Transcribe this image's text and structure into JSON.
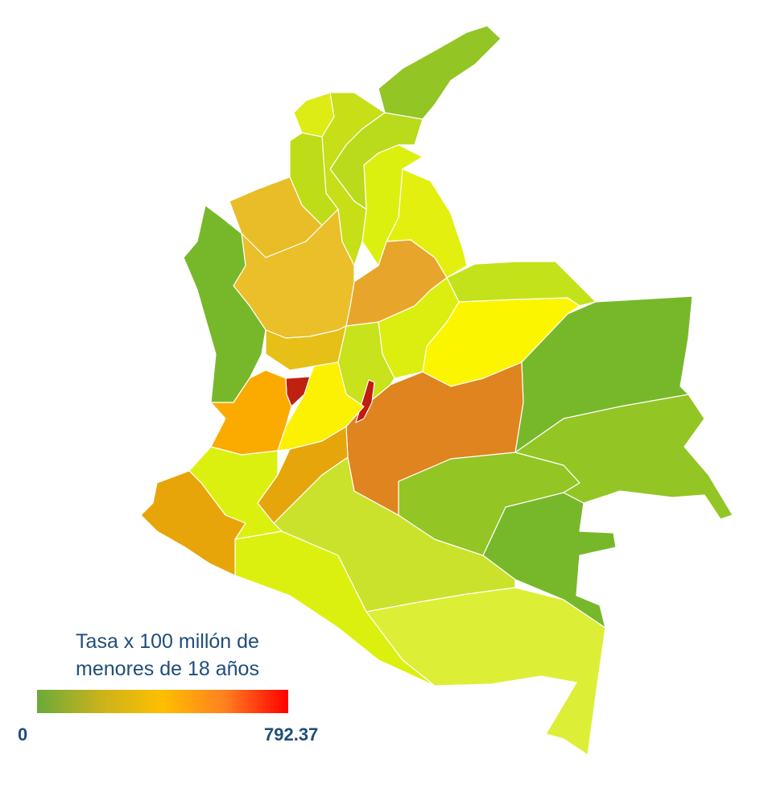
{
  "legend": {
    "title_line1": "Tasa x 100 millón de",
    "title_line2": "menores de 18 años",
    "min_label": "0",
    "max_label": "792.37",
    "min_value": 0,
    "max_value": 792.37,
    "gradient_colors": [
      "#6aaa3a",
      "#c9b21c",
      "#ffbf00",
      "#ff7f20",
      "#ff0000"
    ]
  },
  "regions": [
    {
      "name": "la-guajira",
      "color": "#93c524"
    },
    {
      "name": "magdalena",
      "color": "#bada1c"
    },
    {
      "name": "atlantico",
      "color": "#dcec14"
    },
    {
      "name": "bolivar",
      "color": "#c6df17"
    },
    {
      "name": "cesar",
      "color": "#dcf010"
    },
    {
      "name": "sucre",
      "color": "#bfdc18"
    },
    {
      "name": "cordoba",
      "color": "#e8bd28"
    },
    {
      "name": "antioquia",
      "color": "#ebbf29"
    },
    {
      "name": "norte-de-santander",
      "color": "#e3f00f"
    },
    {
      "name": "santander",
      "color": "#e8a52b"
    },
    {
      "name": "choco",
      "color": "#77b82b"
    },
    {
      "name": "arauca",
      "color": "#c3e21a"
    },
    {
      "name": "casanare",
      "color": "#fbf500"
    },
    {
      "name": "boyaca",
      "color": "#dcee10"
    },
    {
      "name": "caldas",
      "color": "#e6c017"
    },
    {
      "name": "risaralda",
      "color": "#c02010"
    },
    {
      "name": "cundinamarca",
      "color": "#c8e21b"
    },
    {
      "name": "bogota",
      "color": "#c21b10"
    },
    {
      "name": "vichada",
      "color": "#77b82b"
    },
    {
      "name": "meta",
      "color": "#e0841f"
    },
    {
      "name": "valle-del-cauca",
      "color": "#fbaa00"
    },
    {
      "name": "tolima",
      "color": "#fbf100"
    },
    {
      "name": "huila",
      "color": "#e6a50a"
    },
    {
      "name": "cauca",
      "color": "#dcf010"
    },
    {
      "name": "narino",
      "color": "#e8a50a"
    },
    {
      "name": "putumayo",
      "color": "#dcf010"
    },
    {
      "name": "caqueta",
      "color": "#cbe22c"
    },
    {
      "name": "guaviare",
      "color": "#93c524"
    },
    {
      "name": "guainia",
      "color": "#93c524"
    },
    {
      "name": "vaupes",
      "color": "#77b82b"
    },
    {
      "name": "amazonas",
      "color": "#dcef36"
    }
  ]
}
